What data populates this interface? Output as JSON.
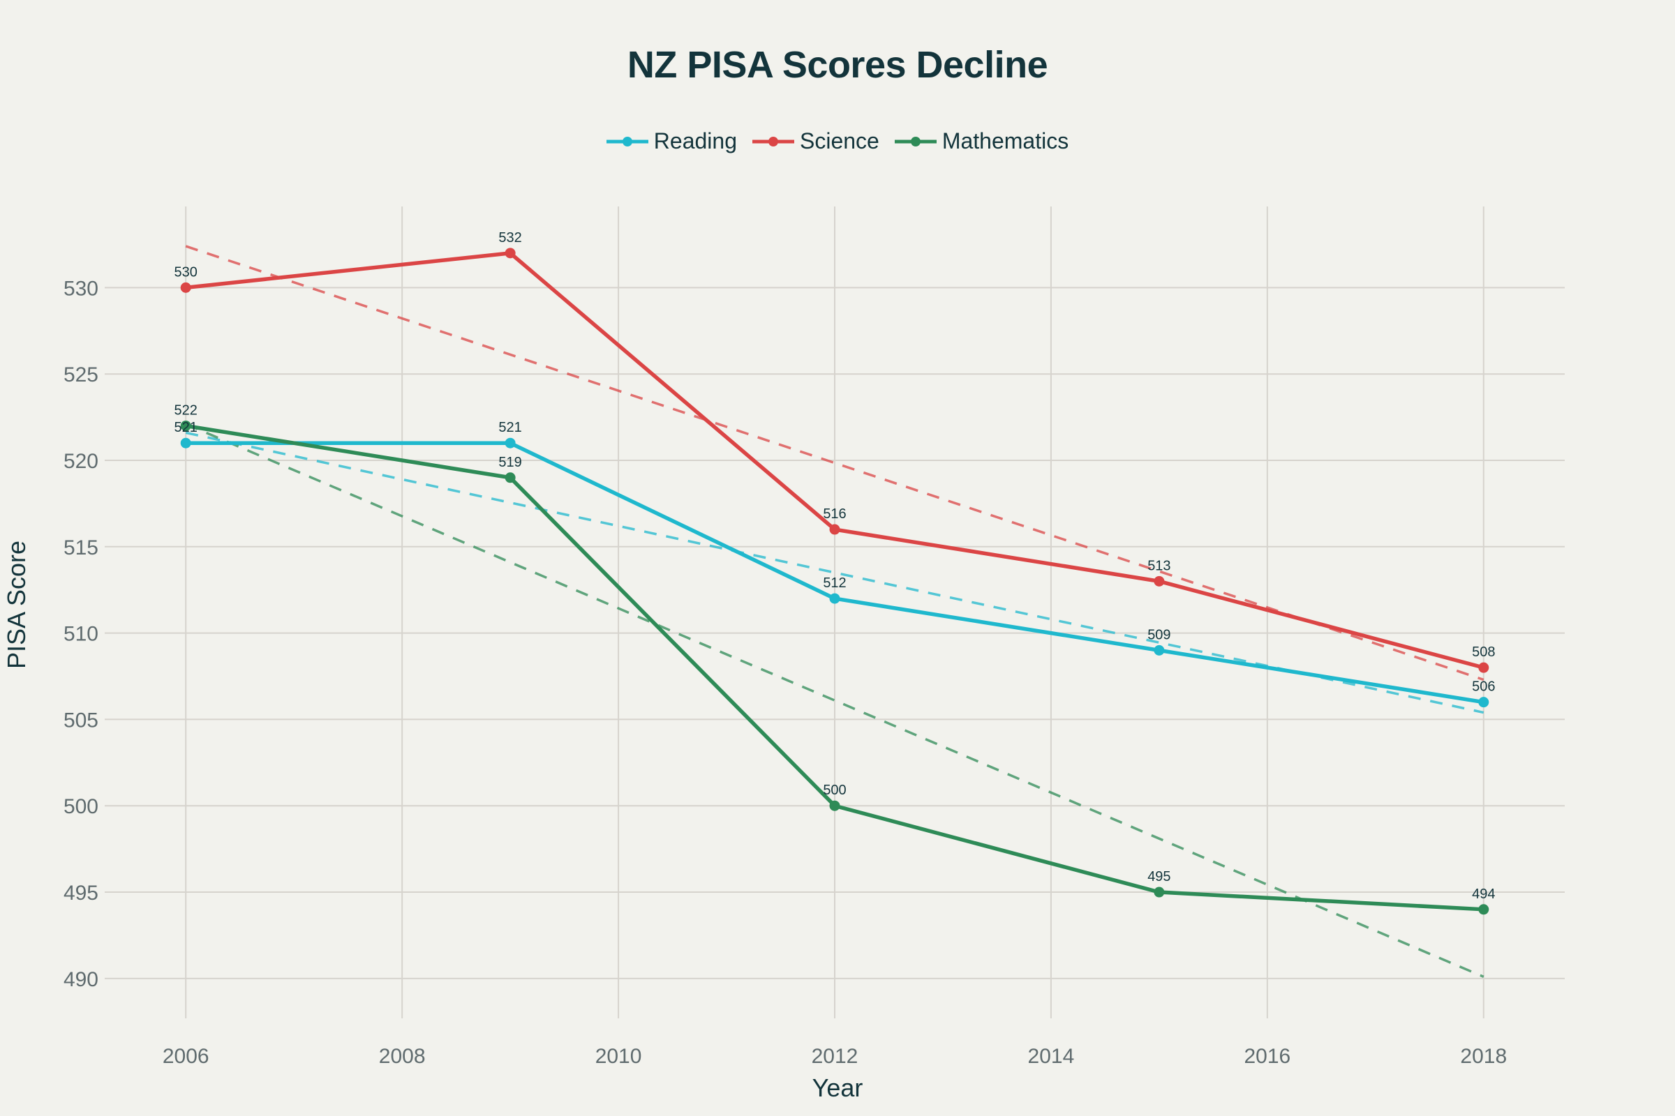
{
  "chart_data": {
    "type": "line",
    "title": "NZ PISA Scores Decline",
    "xlabel": "Year",
    "ylabel": "PISA Score",
    "x": [
      2006,
      2009,
      2012,
      2015,
      2018
    ],
    "xlim": [
      2005.25,
      2018.75
    ],
    "ylim": [
      488.5,
      534.7
    ],
    "x_ticks": [
      2006,
      2008,
      2010,
      2012,
      2014,
      2016,
      2018
    ],
    "y_ticks": [
      490,
      495,
      500,
      505,
      510,
      515,
      520,
      525,
      530
    ],
    "grid": true,
    "legend_position": "top-center",
    "series": [
      {
        "name": "Reading",
        "color": "#1fb8cd",
        "values": [
          521,
          521,
          512,
          509,
          506
        ],
        "labels": [
          "521",
          "521",
          "512",
          "509",
          "506"
        ],
        "trend": [
          521.6,
          505.4
        ]
      },
      {
        "name": "Science",
        "color": "#db4545",
        "values": [
          530,
          532,
          516,
          513,
          508
        ],
        "labels": [
          "530",
          "532",
          "516",
          "513",
          "508"
        ],
        "trend": [
          532.4,
          507.3
        ]
      },
      {
        "name": "Mathematics",
        "color": "#2e8b57",
        "values": [
          522,
          519,
          500,
          495,
          494
        ],
        "labels": [
          "522",
          "519",
          "500",
          "495",
          "494"
        ],
        "trend": [
          522.1,
          490.1
        ]
      }
    ]
  }
}
